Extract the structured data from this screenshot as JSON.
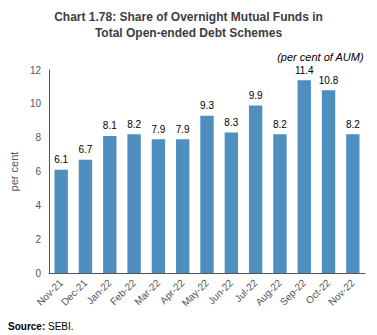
{
  "chart_data": {
    "type": "bar",
    "title": "Chart 1.78: Share of Overnight Mutual Funds in\nTotal Open-ended Debt Schemes",
    "subtitle": "(per cent of AUM)",
    "categories": [
      "Nov-21",
      "Dec-21",
      "Jan-22",
      "Feb-22",
      "Mar-22",
      "Apr-22",
      "May-22",
      "Jun-22",
      "Jul-22",
      "Aug-22",
      "Sep-22",
      "Oct-22",
      "Nov-22"
    ],
    "values": [
      6.1,
      6.7,
      8.1,
      8.2,
      7.9,
      7.9,
      9.3,
      8.3,
      9.9,
      8.2,
      11.4,
      10.8,
      8.2
    ],
    "color": "#4e8fbf",
    "ylabel": "per cent",
    "ylim": [
      0,
      12
    ],
    "yticks": [
      0,
      2,
      4,
      6,
      8,
      10,
      12
    ],
    "grid": false,
    "data_labels": true,
    "annotations": [
      {
        "text": "Source:"
      },
      {
        "text": "SEBI.",
        "color": "#c0392b"
      }
    ]
  }
}
